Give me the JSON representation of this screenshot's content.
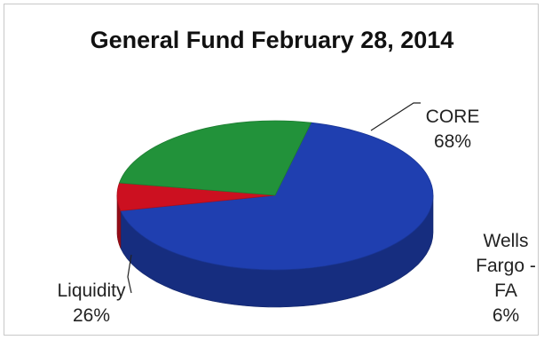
{
  "chart_data": {
    "type": "pie",
    "title": "General Fund February 28, 2014",
    "slices": [
      {
        "label": "CORE",
        "value": 68,
        "value_label": "68%",
        "color": "#1f3fb0"
      },
      {
        "label": "Wells Fargo - FA",
        "value": 6,
        "value_label": "6%",
        "color": "#cc1020"
      },
      {
        "label": "Liquidity",
        "value": 26,
        "value_label": "26%",
        "color": "#22923a"
      }
    ],
    "style": "3d",
    "legend": "none"
  }
}
